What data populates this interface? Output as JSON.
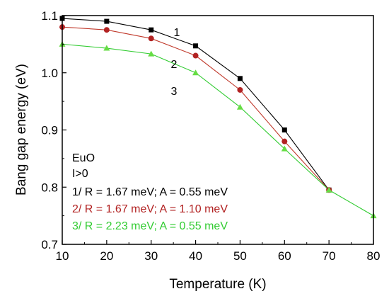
{
  "chart_data": {
    "type": "line",
    "xlabel": "Temperature (K)",
    "ylabel": "Bang gap energy (eV)",
    "xlim": [
      10,
      80
    ],
    "ylim": [
      0.7,
      1.1
    ],
    "x_ticks": [
      "10",
      "20",
      "30",
      "40",
      "50",
      "60",
      "70",
      "80"
    ],
    "y_ticks": [
      "0.7",
      "0.8",
      "0.9",
      "1.0",
      "1.1"
    ],
    "grid": false,
    "series": [
      {
        "name": "1",
        "marker": "square",
        "color": "#000000",
        "fill": "#000000",
        "x": [
          10,
          20,
          30,
          40,
          50,
          60,
          70
        ],
        "values": [
          1.095,
          1.09,
          1.075,
          1.047,
          0.99,
          0.9,
          0.795
        ]
      },
      {
        "name": "2",
        "marker": "circle",
        "color": "#c0392b",
        "fill": "#b22222",
        "x": [
          10,
          20,
          30,
          40,
          50,
          60,
          70
        ],
        "values": [
          1.08,
          1.075,
          1.06,
          1.03,
          0.97,
          0.88,
          0.795
        ]
      },
      {
        "name": "3",
        "marker": "triangle",
        "color": "#33cc33",
        "fill": "#66dd44",
        "x": [
          10,
          20,
          30,
          40,
          50,
          60,
          70,
          80
        ],
        "values": [
          1.05,
          1.043,
          1.033,
          1.0,
          0.94,
          0.867,
          0.795,
          0.75
        ]
      }
    ],
    "annotations": {
      "material": "EuO",
      "condition": "I>0",
      "legend_lines": [
        {
          "text": "1/ R = 1.67 meV; A = 0.55 meV",
          "color": "#000000"
        },
        {
          "text": "2/ R = 1.67 meV; A = 1.10 meV",
          "color": "#b22222"
        },
        {
          "text": "3/ R = 2.23 meV; A = 0.55 meV",
          "color": "#33cc33"
        }
      ],
      "legend_placement": "bottom-left"
    }
  }
}
